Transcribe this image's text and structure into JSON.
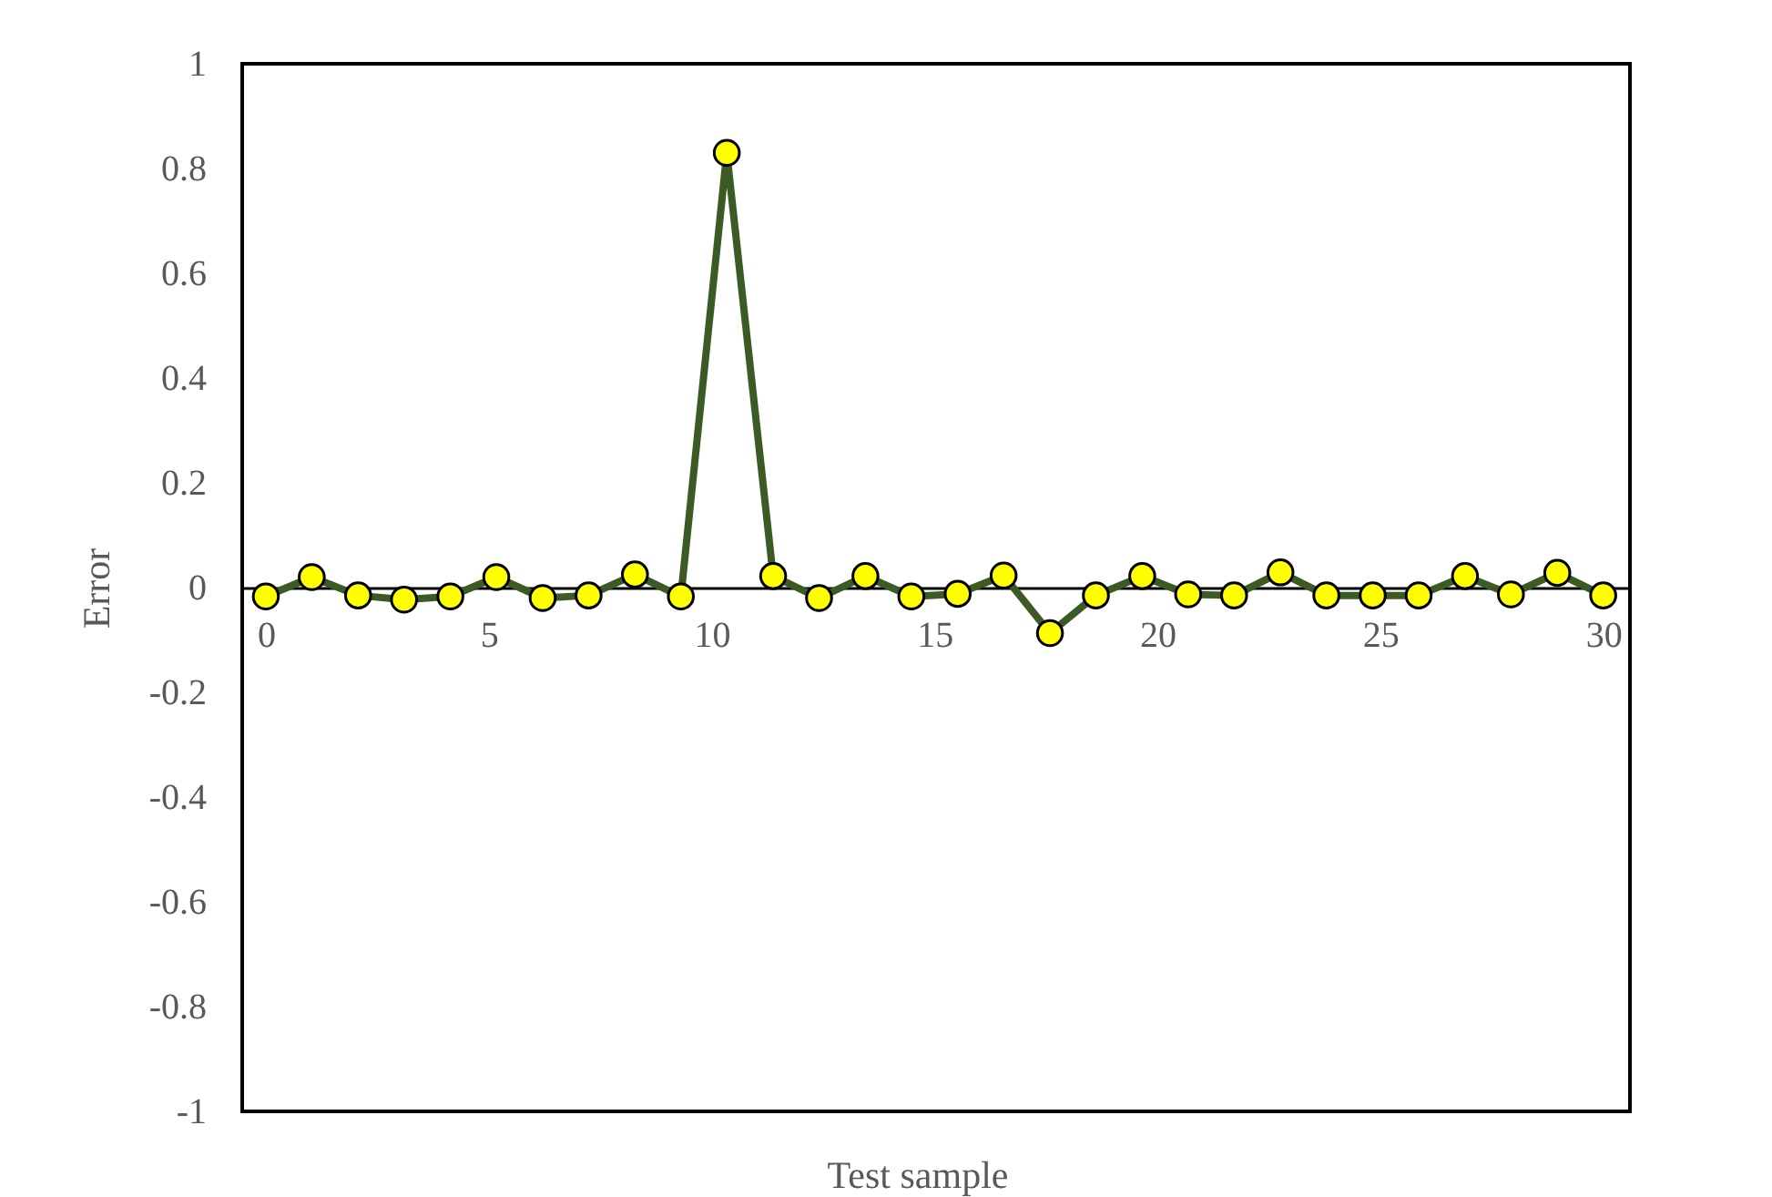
{
  "chart_data": {
    "type": "line",
    "xlabel": "Test sample",
    "ylabel": "Error",
    "x": [
      0,
      1.03,
      2.07,
      3.1,
      4.14,
      5.17,
      6.21,
      7.24,
      8.28,
      9.31,
      10.34,
      11.38,
      12.41,
      13.45,
      14.48,
      15.52,
      16.55,
      17.59,
      18.62,
      19.66,
      20.69,
      21.72,
      22.76,
      23.79,
      24.83,
      25.86,
      26.9,
      27.93,
      28.97,
      30
    ],
    "series": [
      {
        "color": "#3b5a24",
        "values": [
          -0.017,
          0.02,
          -0.015,
          -0.023,
          -0.017,
          0.02,
          -0.02,
          -0.015,
          0.025,
          -0.017,
          0.83,
          0.022,
          -0.02,
          0.022,
          -0.017,
          -0.012,
          0.023,
          -0.087,
          -0.015,
          0.022,
          -0.013,
          -0.015,
          0.029,
          -0.015,
          -0.015,
          -0.015,
          0.022,
          -0.013,
          0.028,
          -0.015
        ]
      }
    ],
    "xlim": [
      -0.53,
      30.6
    ],
    "xticks": [
      0,
      5,
      10,
      15,
      20,
      25,
      30
    ],
    "ylim": [
      -1,
      1
    ],
    "yticks": [
      -1,
      -0.8,
      -0.6,
      -0.4,
      -0.2,
      0,
      0.2,
      0.4,
      0.6,
      0.8,
      1
    ],
    "marker": "circle",
    "line_style": "solid",
    "grid": false
  }
}
